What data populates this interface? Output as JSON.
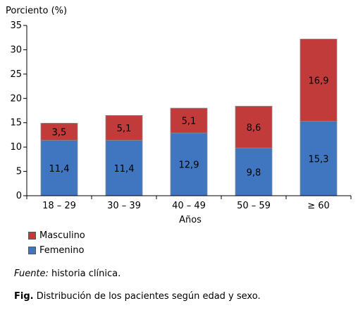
{
  "chart_data": {
    "type": "bar",
    "stacked": true,
    "ylabel": "Porciento (%)",
    "xlabel": "Años",
    "ylim": [
      0,
      35
    ],
    "yticks": [
      "0",
      "5",
      "10",
      "15",
      "20",
      "25",
      "30",
      "35"
    ],
    "categories": [
      "18 – 29",
      "30 – 39",
      "40 – 49",
      "50 – 59",
      "≥ 60"
    ],
    "series": [
      {
        "name": "Femenino",
        "color": "#3f76bf",
        "values": [
          11.4,
          11.4,
          12.9,
          9.8,
          15.3
        ],
        "labels": [
          "11,4",
          "11,4",
          "12,9",
          "9,8",
          "15,3"
        ]
      },
      {
        "name": "Masculino",
        "color": "#c23b3b",
        "values": [
          3.5,
          5.1,
          5.1,
          8.6,
          16.9
        ],
        "labels": [
          "3,5",
          "5,1",
          "5,1",
          "8,6",
          "16,9"
        ]
      }
    ],
    "legend_position": "bottom-left",
    "grid": false
  },
  "legend": {
    "masculino": "Masculino",
    "femenino": "Femenino"
  },
  "source": {
    "label": "Fuente:",
    "text": " historia clínica."
  },
  "caption": {
    "label": "Fig.",
    "text": " Distribución de los pacientes según edad y sexo."
  }
}
